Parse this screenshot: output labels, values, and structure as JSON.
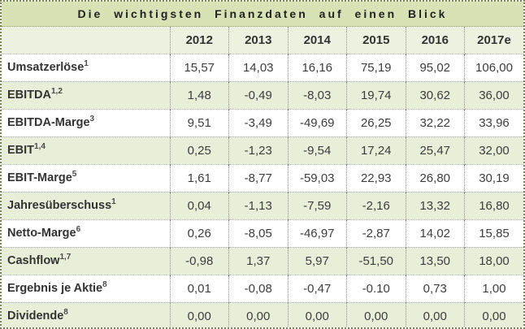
{
  "colors": {
    "outer_border": "#7a8454",
    "title_bar_bg": "#d7e3b4",
    "header_row_bg": "#ecf2df",
    "alt_row_bg": "#e8efd8",
    "row_bg": "#ffffff",
    "grid_dotted_gray": "#8f8f8f",
    "title_text": "#222222",
    "value_text": "#3d3d3d"
  },
  "chart_data": {
    "type": "table",
    "title": "Die wichtigsten Finanzdaten auf einen Blick",
    "columns": [
      "2012",
      "2013",
      "2014",
      "2015",
      "2016",
      "2017e"
    ],
    "rows": [
      {
        "label": "Umsatzerlöse",
        "sup": "1",
        "values": [
          "15,57",
          "14,03",
          "16,16",
          "75,19",
          "95,02",
          "106,00"
        ]
      },
      {
        "label": "EBITDA",
        "sup": "1,2",
        "values": [
          "1,48",
          "-0,49",
          "-8,03",
          "19,74",
          "30,62",
          "36,00"
        ]
      },
      {
        "label": "EBITDA-Marge",
        "sup": "3",
        "values": [
          "9,51",
          "-3,49",
          "-49,69",
          "26,25",
          "32,22",
          "33,96"
        ]
      },
      {
        "label": "EBIT",
        "sup": "1,4",
        "values": [
          "0,25",
          "-1,23",
          "-9,54",
          "17,24",
          "25,47",
          "32,00"
        ]
      },
      {
        "label": "EBIT-Marge",
        "sup": "5",
        "values": [
          "1,61",
          "-8,77",
          "-59,03",
          "22,93",
          "26,80",
          "30,19"
        ]
      },
      {
        "label": "Jahresüberschuss",
        "sup": "1",
        "values": [
          "0,04",
          "-1,13",
          "-7,59",
          "-2,16",
          "13,32",
          "16,80"
        ]
      },
      {
        "label": "Netto-Marge",
        "sup": "6",
        "values": [
          "0,26",
          "-8,05",
          "-46,97",
          "-2,87",
          "14,02",
          "15,85"
        ]
      },
      {
        "label": "Cashflow",
        "sup": "1,7",
        "values": [
          "-0,98",
          "1,37",
          "5,97",
          "-51,50",
          "13,50",
          "18,00"
        ]
      },
      {
        "label": "Ergebnis je Aktie",
        "sup": "8",
        "values": [
          "0,01",
          "-0,08",
          "-0,47",
          "-0.10",
          "0,73",
          "1,00"
        ]
      },
      {
        "label": "Dividende",
        "sup": "8",
        "values": [
          "0,00",
          "0,00",
          "0,00",
          "0,00",
          "0,00",
          "0,00"
        ]
      }
    ]
  }
}
